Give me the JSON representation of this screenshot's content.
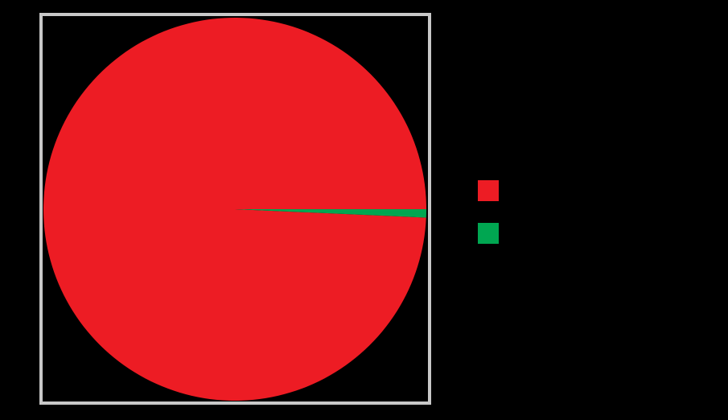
{
  "chart_data": {
    "type": "pie",
    "title": "",
    "slices": [
      {
        "label": "",
        "value": 99.3,
        "color": "#ED1C24"
      },
      {
        "label": "",
        "value": 0.7,
        "color": "#00A651"
      }
    ],
    "start_angle_deg": 0,
    "direction": "counterclockwise",
    "legend": {
      "placement": "right",
      "entries": [
        {
          "label": "",
          "color": "#ED1C24"
        },
        {
          "label": "",
          "color": "#00A651"
        }
      ]
    },
    "frame": {
      "border_color": "#C8C8C8"
    },
    "background": "#000000"
  }
}
